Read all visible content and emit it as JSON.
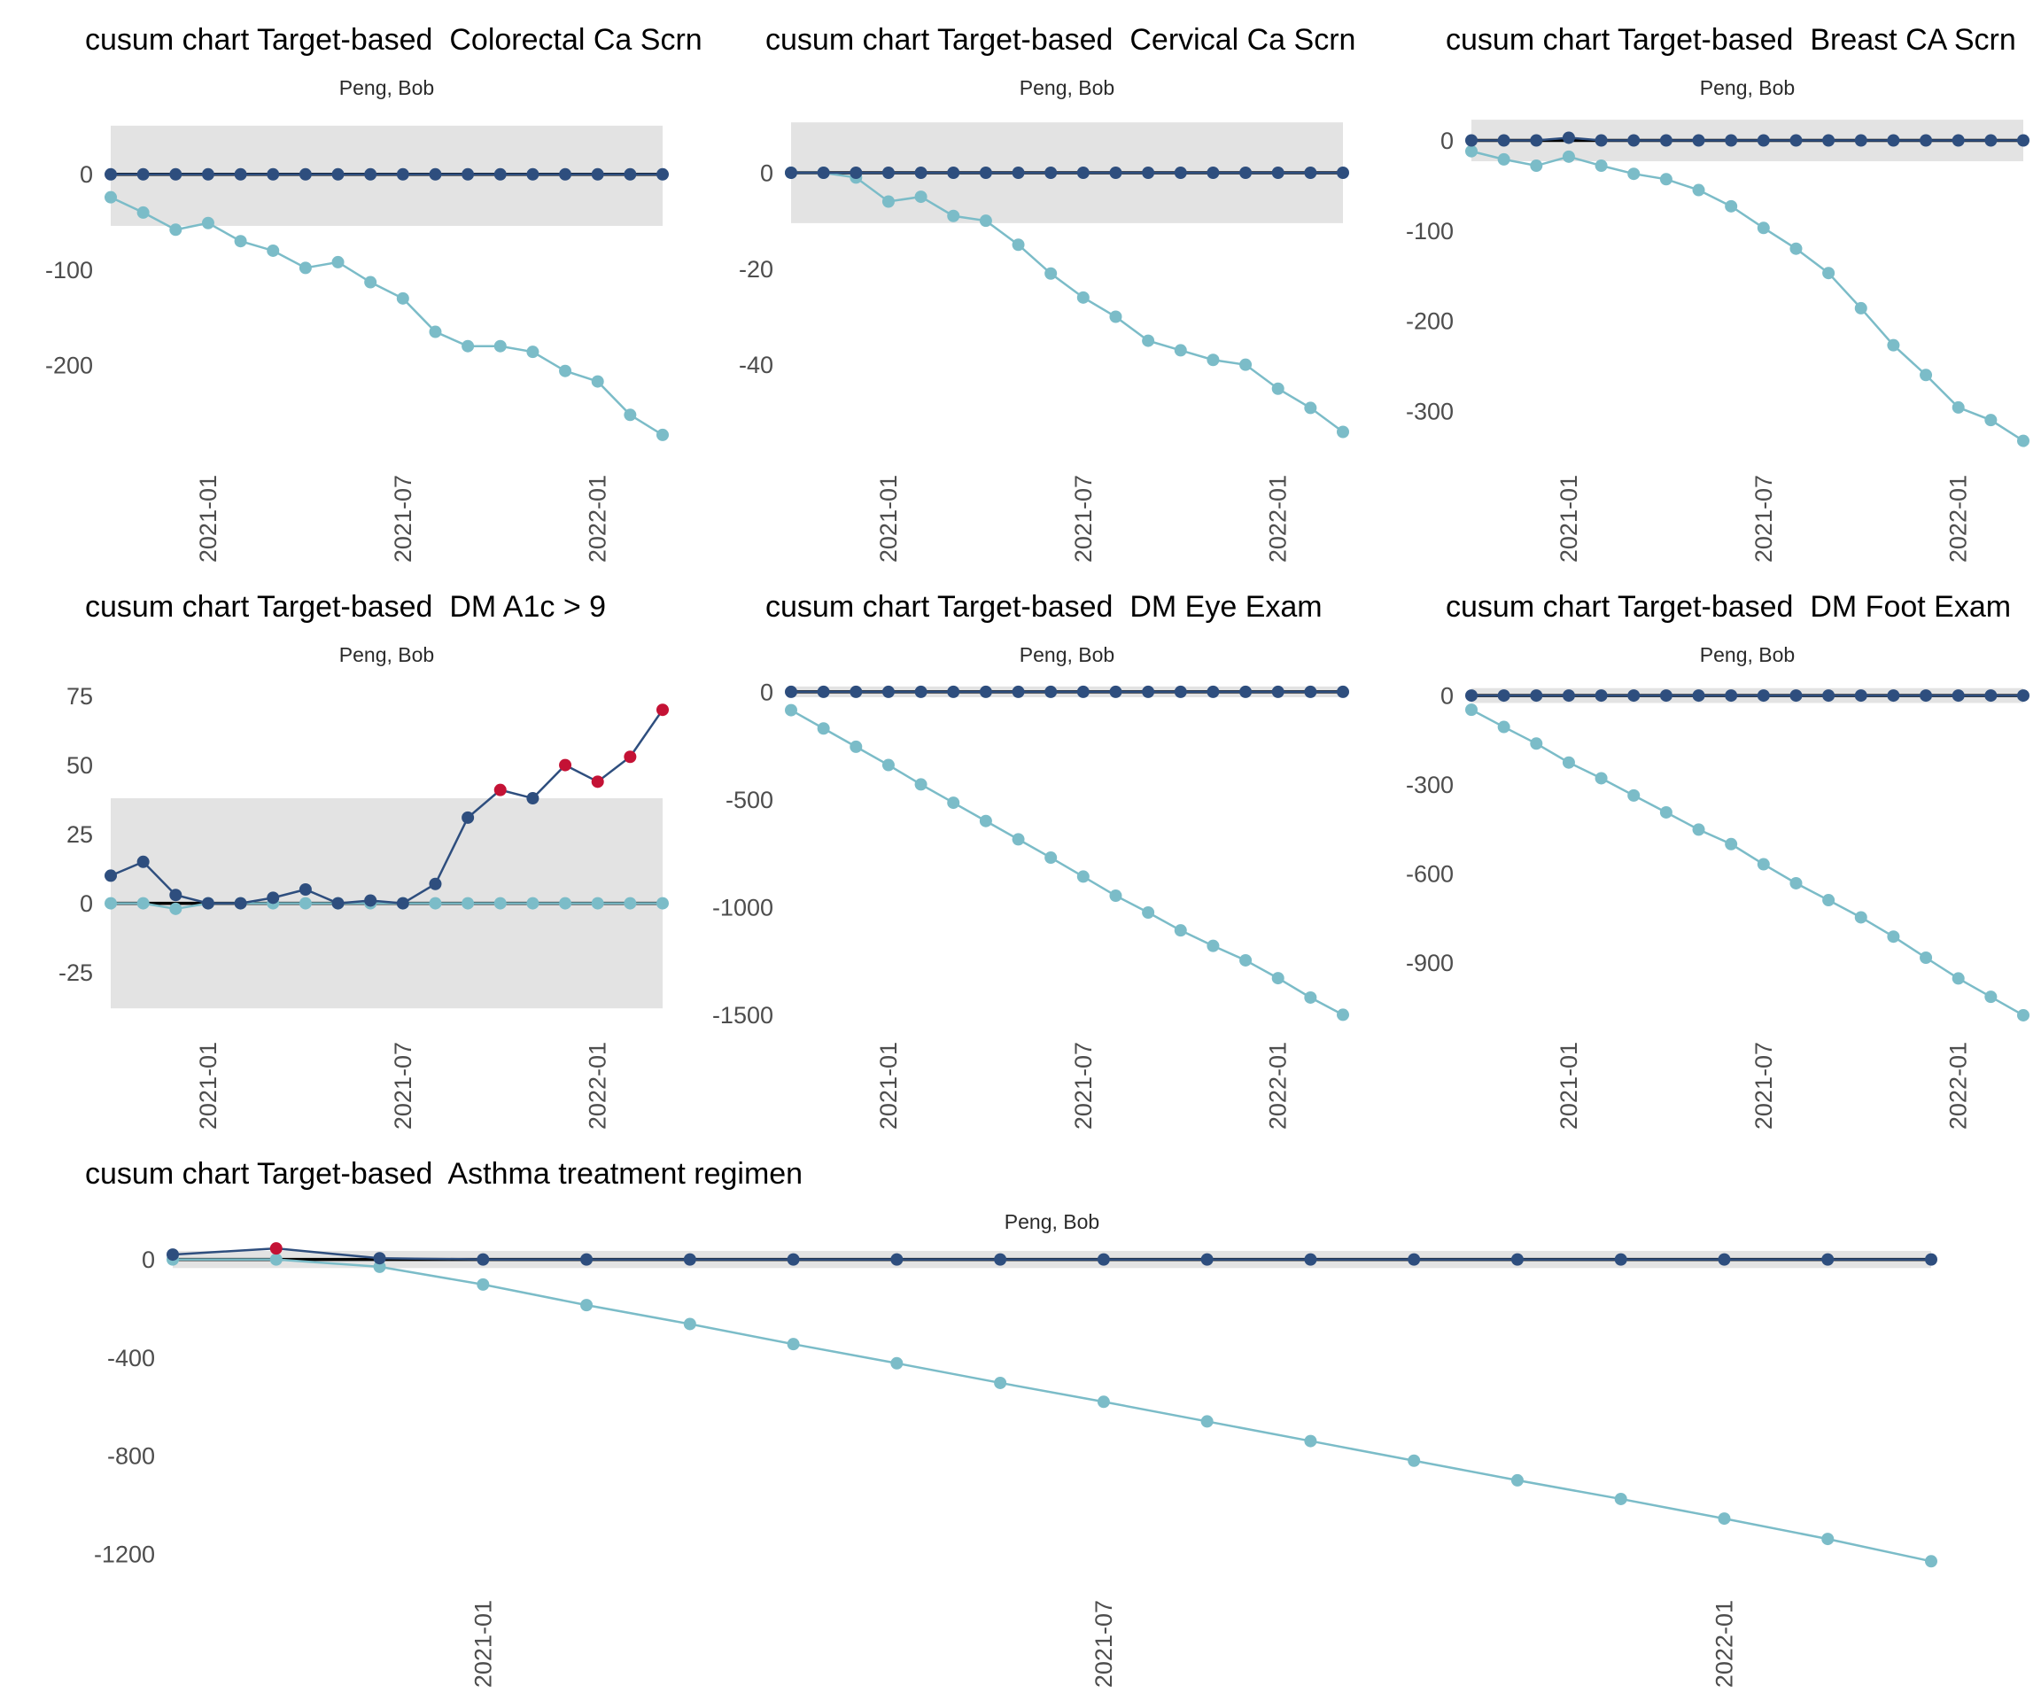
{
  "page": {
    "person": "Peng, Bob",
    "title_prefix": "cusum chart Target-based"
  },
  "colors": {
    "navy_series": "#2E4E7E",
    "cyan_series": "#7BBCC8",
    "signal_red": "#C41235",
    "control_band": "#E3E3E3",
    "zero_line": "#000000",
    "axis_text": "#4D4D4D",
    "title_text": "#000000",
    "subtitle_text": "#2B2B2B"
  },
  "x_axis": {
    "dates": [
      "2020-10",
      "2020-11",
      "2020-12",
      "2021-01",
      "2021-02",
      "2021-03",
      "2021-04",
      "2021-05",
      "2021-06",
      "2021-07",
      "2021-08",
      "2021-09",
      "2021-10",
      "2021-11",
      "2021-12",
      "2022-01",
      "2022-02",
      "2022-03"
    ],
    "tick_indices": [
      3,
      9,
      15
    ],
    "tick_labels": [
      "2021-01",
      "2021-07",
      "2022-01"
    ]
  },
  "chart_data": [
    {
      "type": "line",
      "title": "cusum chart Target-based  Colorectal Ca Scrn",
      "measure": "Colorectal Ca Scrn",
      "subtitle": "Peng, Bob",
      "layout": "small",
      "ylim": [
        62,
        -300
      ],
      "yticks": [
        0,
        -100,
        -200
      ],
      "band": [
        51,
        -54
      ],
      "series": [
        {
          "name": "upper-cusum",
          "color_key": "navy_series",
          "values": [
            0,
            0,
            0,
            0,
            0,
            0,
            0,
            0,
            0,
            0,
            0,
            0,
            0,
            0,
            0,
            0,
            0,
            0
          ],
          "red_flags": []
        },
        {
          "name": "lower-cusum",
          "color_key": "cyan_series",
          "values": [
            -24,
            -40,
            -58,
            -51,
            -70,
            -80,
            -98,
            -92,
            -113,
            -130,
            -165,
            -180,
            -180,
            -186,
            -206,
            -217,
            -252,
            -273
          ],
          "red_flags": []
        }
      ]
    },
    {
      "type": "line",
      "title": "cusum chart Target-based  Cervical Ca Scrn",
      "measure": "Cervical Ca Scrn",
      "subtitle": "Peng, Bob",
      "layout": "small",
      "ylim": [
        12,
        -60
      ],
      "yticks": [
        0,
        -20,
        -40
      ],
      "band": [
        10.5,
        -10.5
      ],
      "series": [
        {
          "name": "upper-cusum",
          "color_key": "navy_series",
          "values": [
            0,
            0,
            0,
            0,
            0,
            0,
            0,
            0,
            0,
            0,
            0,
            0,
            0,
            0,
            0,
            0,
            0,
            0
          ],
          "red_flags": []
        },
        {
          "name": "lower-cusum",
          "color_key": "cyan_series",
          "values": [
            0,
            0,
            -1,
            -6,
            -5,
            -9,
            -10,
            -15,
            -21,
            -26,
            -30,
            -35,
            -37,
            -39,
            -40,
            -45,
            -49,
            -54
          ],
          "red_flags": []
        }
      ]
    },
    {
      "type": "line",
      "title": "cusum chart Target-based  Breast CA Scrn",
      "measure": "Breast CA Scrn",
      "subtitle": "Peng, Bob",
      "layout": "small",
      "ylim": [
        28,
        -355
      ],
      "yticks": [
        0,
        -100,
        -200,
        -300
      ],
      "band": [
        23,
        -23
      ],
      "series": [
        {
          "name": "upper-cusum",
          "color_key": "navy_series",
          "values": [
            0,
            0,
            0,
            3,
            0,
            0,
            0,
            0,
            0,
            0,
            0,
            0,
            0,
            0,
            0,
            0,
            0,
            0
          ],
          "red_flags": []
        },
        {
          "name": "lower-cusum",
          "color_key": "cyan_series",
          "values": [
            -12,
            -21,
            -28,
            -18,
            -28,
            -37,
            -43,
            -55,
            -73,
            -97,
            -120,
            -147,
            -186,
            -227,
            -260,
            -296,
            -310,
            -333
          ],
          "red_flags": []
        }
      ]
    },
    {
      "type": "line",
      "title": "cusum chart Target-based  DM A1c > 9",
      "measure": "DM A1c > 9",
      "subtitle": "Peng, Bob",
      "layout": "small",
      "ylim": [
        80,
        -45
      ],
      "yticks": [
        75,
        50,
        25,
        0,
        -25
      ],
      "band": [
        38,
        -38
      ],
      "series": [
        {
          "name": "upper-cusum",
          "color_key": "navy_series",
          "values": [
            10,
            15,
            3,
            0,
            0,
            2,
            5,
            0,
            1,
            0,
            7,
            31,
            41,
            38,
            50,
            44,
            53,
            70
          ],
          "red_flags": [
            12,
            14,
            15,
            16,
            17
          ]
        },
        {
          "name": "lower-cusum",
          "color_key": "cyan_series",
          "values": [
            0,
            0,
            -2,
            0,
            0,
            0,
            0,
            0,
            0,
            0,
            0,
            0,
            0,
            0,
            0,
            0,
            0,
            0
          ],
          "red_flags": []
        }
      ]
    },
    {
      "type": "line",
      "title": "cusum chart Target-based  DM Eye Exam",
      "measure": "DM Eye Exam",
      "subtitle": "Peng, Bob",
      "layout": "small",
      "ylim": [
        45,
        -1560
      ],
      "yticks": [
        0,
        -500,
        -1000,
        -1500
      ],
      "band": [
        25,
        -25
      ],
      "series": [
        {
          "name": "upper-cusum",
          "color_key": "navy_series",
          "values": [
            0,
            0,
            0,
            0,
            0,
            0,
            0,
            0,
            0,
            0,
            0,
            0,
            0,
            0,
            0,
            0,
            0,
            0
          ],
          "red_flags": []
        },
        {
          "name": "lower-cusum",
          "color_key": "cyan_series",
          "values": [
            -85,
            -170,
            -255,
            -340,
            -430,
            -515,
            -600,
            -685,
            -770,
            -858,
            -947,
            -1025,
            -1108,
            -1180,
            -1247,
            -1330,
            -1420,
            -1500
          ],
          "red_flags": []
        }
      ]
    },
    {
      "type": "line",
      "title": "cusum chart Target-based  DM Foot Exam",
      "measure": "DM Foot Exam",
      "subtitle": "Peng, Bob",
      "layout": "small",
      "ylim": [
        45,
        -1120
      ],
      "yticks": [
        0,
        -300,
        -600,
        -900
      ],
      "band": [
        25,
        -25
      ],
      "series": [
        {
          "name": "upper-cusum",
          "color_key": "navy_series",
          "values": [
            0,
            0,
            0,
            0,
            0,
            0,
            0,
            0,
            0,
            0,
            0,
            0,
            0,
            0,
            0,
            0,
            0,
            0
          ],
          "red_flags": []
        },
        {
          "name": "lower-cusum",
          "color_key": "cyan_series",
          "values": [
            -48,
            -106,
            -162,
            -226,
            -279,
            -337,
            -394,
            -452,
            -501,
            -569,
            -633,
            -690,
            -748,
            -813,
            -884,
            -954,
            -1016,
            -1078
          ],
          "red_flags": []
        }
      ]
    },
    {
      "type": "line",
      "title": "cusum chart Target-based  Asthma treatment regimen",
      "measure": "Asthma treatment regimen",
      "subtitle": "Peng, Bob",
      "layout": "wide",
      "ylim": [
        60,
        -1330
      ],
      "yticks": [
        0,
        -400,
        -800,
        -1200
      ],
      "band": [
        35,
        -35
      ],
      "series": [
        {
          "name": "upper-cusum",
          "color_key": "navy_series",
          "values": [
            20,
            45,
            5,
            0,
            0,
            0,
            0,
            0,
            0,
            0,
            0,
            0,
            0,
            0,
            0,
            0,
            0,
            0
          ],
          "red_flags": [
            1
          ]
        },
        {
          "name": "lower-cusum",
          "color_key": "cyan_series",
          "values": [
            0,
            0,
            -30,
            -102,
            -186,
            -263,
            -345,
            -423,
            -503,
            -580,
            -660,
            -740,
            -820,
            -900,
            -976,
            -1056,
            -1139,
            -1230
          ],
          "red_flags": []
        }
      ]
    }
  ]
}
